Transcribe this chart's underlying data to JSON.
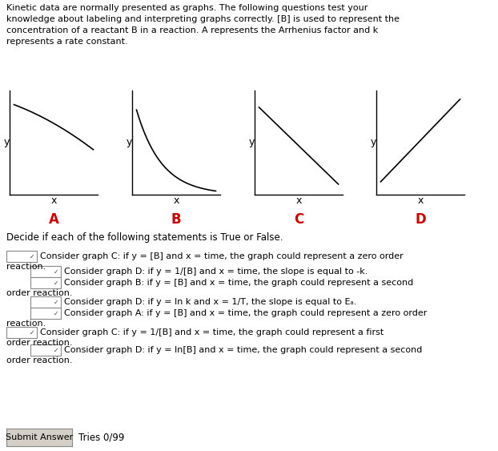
{
  "background_color": "#ffffff",
  "text_color": "#000000",
  "red_color": "#cc0000",
  "graph_labels": [
    "A",
    "B",
    "C",
    "D"
  ],
  "graph_curves": [
    "slight_curve_down",
    "steep_curve_down",
    "linear_down",
    "linear_up"
  ],
  "submit_button_text": "Submit Answer",
  "tries_text": "Tries 0/99",
  "intro_lines": [
    "Kinetic data are normally presented as graphs. The following questions test your",
    "knowledge about labeling and interpreting graphs correctly. [B] is used to represent the",
    "concentration of a reactant B in a reaction. A represents the Arrhenius factor and k",
    "represents a rate constant."
  ],
  "decide_text": "Decide if each of the following statements is True or False.",
  "statements": [
    {
      "indent": 0,
      "lines": [
        "Consider graph C: if y = [B] and x = time, the graph could represent a zero order",
        "reaction."
      ]
    },
    {
      "indent": 1,
      "lines": [
        "Consider graph D: if y = 1/[B] and x = time, the slope is equal to -k."
      ]
    },
    {
      "indent": 1,
      "lines": [
        "Consider graph B: if y = [B] and x = time, the graph could represent a second",
        "order reaction."
      ]
    },
    {
      "indent": 1,
      "lines": [
        "Consider graph D: if y = ln k and x = 1/T, the slope is equal to Eₐ."
      ]
    },
    {
      "indent": 1,
      "lines": [
        "Consider graph A: if y = [B] and x = time, the graph could represent a zero order",
        "reaction."
      ]
    },
    {
      "indent": 0,
      "lines": [
        "Consider graph C: if y = 1/[B] and x = time, the graph could represent a first",
        "order reaction."
      ]
    },
    {
      "indent": 1,
      "lines": [
        "Consider graph D: if y = ln[B] and x = time, the graph could represent a second",
        "order reaction."
      ]
    }
  ],
  "fig_width": 6.22,
  "fig_height": 5.63,
  "dpi": 100
}
